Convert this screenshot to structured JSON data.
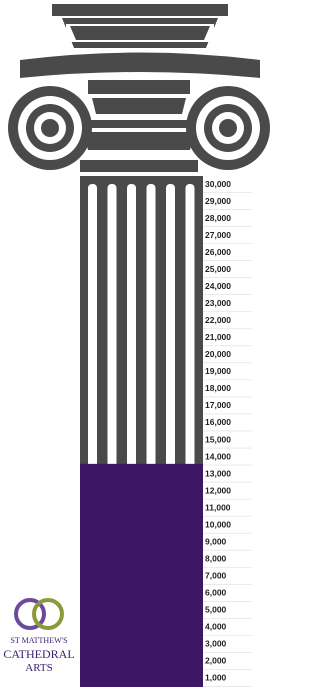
{
  "chart_data": {
    "type": "bar",
    "values": [
      13600
    ],
    "color": "#3d1766",
    "ylim": [
      500,
      30500
    ],
    "yticks": [
      {
        "value": 1000,
        "label": "1,000"
      },
      {
        "value": 2000,
        "label": "2,000"
      },
      {
        "value": 3000,
        "label": "3,000"
      },
      {
        "value": 4000,
        "label": "4,000"
      },
      {
        "value": 5000,
        "label": "5,000"
      },
      {
        "value": 6000,
        "label": "6,000"
      },
      {
        "value": 7000,
        "label": "7,000"
      },
      {
        "value": 8000,
        "label": "8,000"
      },
      {
        "value": 9000,
        "label": "9,000"
      },
      {
        "value": 10000,
        "label": "10,000"
      },
      {
        "value": 11000,
        "label": "11,000"
      },
      {
        "value": 12000,
        "label": "12,000"
      },
      {
        "value": 13000,
        "label": "13,000"
      },
      {
        "value": 14000,
        "label": "14,000"
      },
      {
        "value": 15000,
        "label": "15,000"
      },
      {
        "value": 16000,
        "label": "16,000"
      },
      {
        "value": 17000,
        "label": "17,000"
      },
      {
        "value": 18000,
        "label": "18,000"
      },
      {
        "value": 19000,
        "label": "19,000"
      },
      {
        "value": 20000,
        "label": "20,000"
      },
      {
        "value": 21000,
        "label": "21,000"
      },
      {
        "value": 22000,
        "label": "22,000"
      },
      {
        "value": 23000,
        "label": "23,000"
      },
      {
        "value": 24000,
        "label": "24,000"
      },
      {
        "value": 25000,
        "label": "25,000"
      },
      {
        "value": 26000,
        "label": "26,000"
      },
      {
        "value": 27000,
        "label": "27,000"
      },
      {
        "value": 28000,
        "label": "28,000"
      },
      {
        "value": 29000,
        "label": "29,000"
      },
      {
        "value": 30000,
        "label": "30,000"
      }
    ],
    "grid": true,
    "annotations": [
      "ST MATTHEW'S",
      "CATHEDRAL",
      "ARTS"
    ]
  }
}
